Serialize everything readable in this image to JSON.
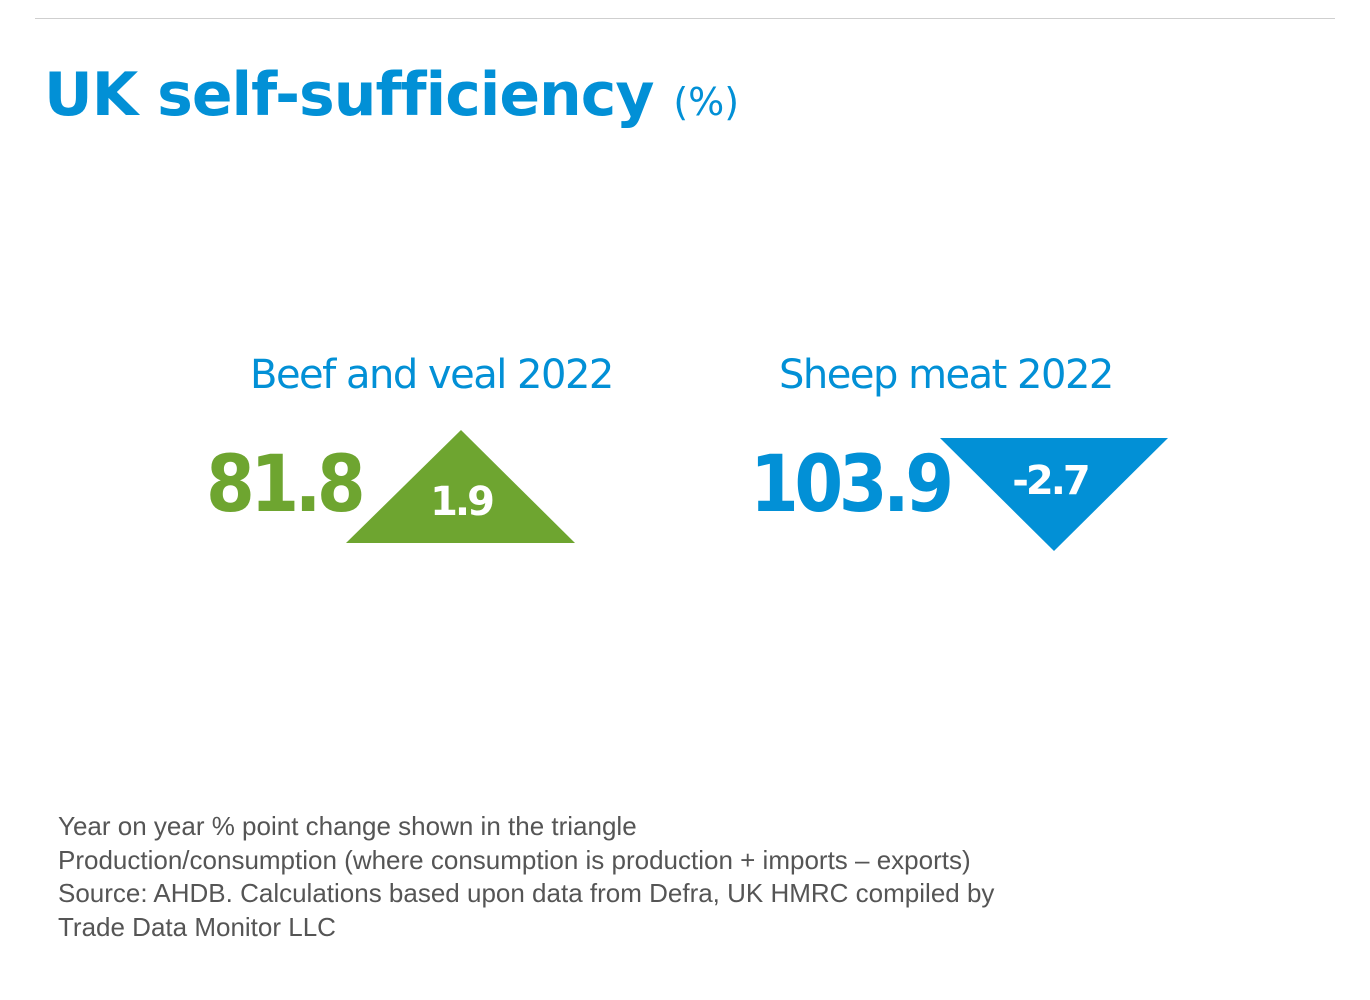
{
  "title": "UK self-sufficiency",
  "title_unit": "(%)",
  "colors": {
    "blue": "#0290d6",
    "green": "#6ea530"
  },
  "cards": [
    {
      "label": "Beef and veal 2022",
      "value": "81.8",
      "change": "1.9",
      "direction": "up"
    },
    {
      "label": "Sheep meat 2022",
      "value": "103.9",
      "change": "-2.7",
      "direction": "down"
    }
  ],
  "notes": [
    "Year on year % point change shown in the triangle",
    "Production/consumption (where consumption is production + imports – exports)",
    "Source: AHDB. Calculations based upon data from Defra, UK HMRC compiled by",
    "Trade Data Monitor LLC"
  ]
}
